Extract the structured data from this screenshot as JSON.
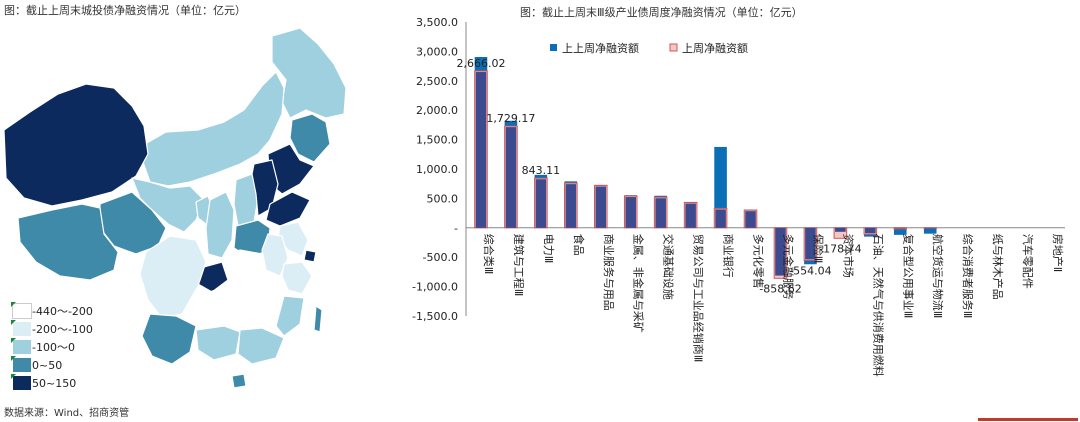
{
  "map": {
    "title": "图：截止上周末城投债净融资情况（单位：亿元）",
    "legend": [
      {
        "label": "-440～-200",
        "color": "#ffffff"
      },
      {
        "label": "-200～-100",
        "color": "#dceef5"
      },
      {
        "label": "-100～0",
        "color": "#9fd0e0"
      },
      {
        "label": "0~50",
        "color": "#3f8aa8"
      },
      {
        "label": "50~150",
        "color": "#0d2a5e"
      }
    ],
    "colors": {
      "c1": "#ffffff",
      "c2": "#dceef5",
      "c3": "#9fd0e0",
      "c4": "#3f8aa8",
      "c5": "#0d2a5e"
    }
  },
  "source": "数据来源：Wind、招商资管",
  "chart_data": {
    "type": "bar",
    "title": "图：截止上周末Ⅲ级产业债周度净融资情况（单位：亿元）",
    "ylim": [
      -1500,
      3500
    ],
    "yticks": [
      "3,500.0",
      "3,000.0",
      "2,500.0",
      "2,000.0",
      "1,500.0",
      "1,000.0",
      "500.0",
      "-",
      "-500.0",
      "-1,000.0",
      "-1,500.0"
    ],
    "categories": [
      "综合类Ⅲ",
      "建筑与工程Ⅲ",
      "电力Ⅲ",
      "食品",
      "商业服务与用品",
      "金属、非金属与采矿",
      "交通基础设施",
      "贸易公司与工业品经销商Ⅲ",
      "商业银行",
      "多元化零售",
      "多元金融服务",
      "保险Ⅲ",
      "资本市场",
      "石油、天然气与供消费用燃料",
      "复合型公用事业Ⅲ",
      "航空货运与物流Ⅲ",
      "综合消费者服务Ⅲ",
      "纸与林木产品",
      "汽车零配件",
      "房地产Ⅱ"
    ],
    "series": [
      {
        "name": "上上周净融资额",
        "color": "#0b6fb8",
        "values": [
          2905,
          1820,
          900,
          790,
          730,
          555,
          545,
          440,
          1375,
          310,
          -830,
          -620,
          -85,
          -150,
          -120,
          -100,
          0,
          0,
          0,
          0
        ]
      },
      {
        "name": "上周净融资额",
        "color": "#f4c7c7",
        "values": [
          2666.02,
          1729.17,
          843.11,
          760,
          720,
          540,
          520,
          430,
          330,
          300,
          -858.62,
          -554.04,
          -178.74,
          -110,
          -20,
          -5,
          0,
          0,
          0,
          0
        ]
      }
    ],
    "overlay_color": "#3c4a90",
    "data_labels": [
      {
        "index": 0,
        "text": "2,666.02"
      },
      {
        "index": 1,
        "text": "1,729.17"
      },
      {
        "index": 2,
        "text": "843.11"
      },
      {
        "index": 10,
        "text": "-858.62"
      },
      {
        "index": 11,
        "text": "-554.04"
      },
      {
        "index": 12,
        "text": "-178.74"
      }
    ]
  }
}
